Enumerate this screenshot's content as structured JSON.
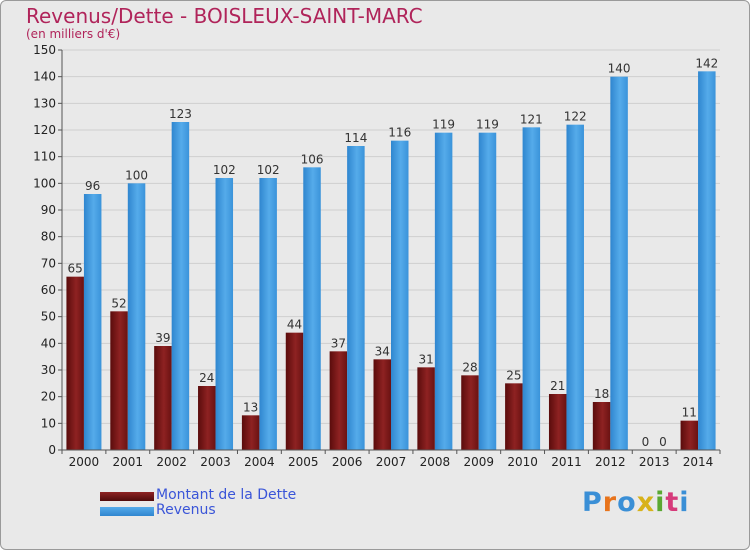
{
  "title": "Revenus/Dette - BOISLEUX-SAINT-MARC",
  "subtitle": "(en milliers d'€)",
  "logo": "Proxiti",
  "colors": {
    "dette": "#8b1a1a",
    "revenus": "#3d9be0",
    "title": "#b0245a"
  },
  "chart_data": {
    "type": "bar",
    "categories": [
      "2000",
      "2001",
      "2002",
      "2003",
      "2004",
      "2005",
      "2006",
      "2007",
      "2008",
      "2009",
      "2010",
      "2011",
      "2012",
      "2013",
      "2014"
    ],
    "series": [
      {
        "name": "Montant de la Dette",
        "values": [
          65,
          52,
          39,
          24,
          13,
          44,
          37,
          34,
          31,
          28,
          25,
          21,
          18,
          0,
          11
        ]
      },
      {
        "name": "Revenus",
        "values": [
          96,
          100,
          123,
          102,
          102,
          106,
          114,
          116,
          119,
          119,
          121,
          122,
          140,
          0,
          142
        ]
      }
    ],
    "ylim": [
      0,
      150
    ],
    "yticks": [
      0,
      10,
      20,
      30,
      40,
      50,
      60,
      70,
      80,
      90,
      100,
      110,
      120,
      130,
      140,
      150
    ],
    "grid": true,
    "legend": "bottom-left"
  }
}
